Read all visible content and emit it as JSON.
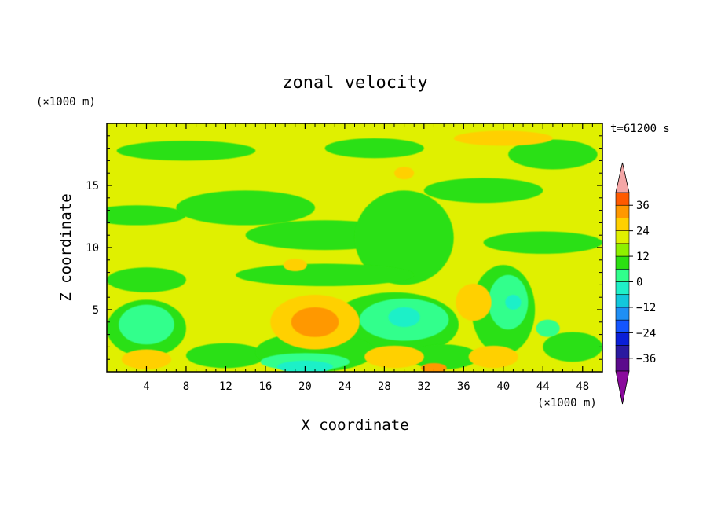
{
  "chart_data": {
    "type": "heatmap",
    "title": "zonal velocity",
    "xlabel": "X coordinate",
    "ylabel": "Z coordinate",
    "x_unit": "(×1000 m)",
    "y_unit": "(×1000 m)",
    "time_label": "t=61200 s",
    "xlim": [
      0,
      50
    ],
    "ylim": [
      0,
      20
    ],
    "x_ticks": [
      4,
      8,
      12,
      16,
      20,
      24,
      28,
      32,
      36,
      40,
      44,
      48
    ],
    "y_ticks": [
      5,
      10,
      15
    ],
    "colorbar": {
      "levels": [
        -42,
        -36,
        -30,
        -24,
        -18,
        -12,
        -6,
        0,
        6,
        12,
        18,
        24,
        30,
        36,
        42
      ],
      "labels": [
        -36,
        -24,
        -12,
        0,
        12,
        24,
        36
      ],
      "colors": [
        "#5b0a8c",
        "#2a1aa0",
        "#0a1fd8",
        "#1455ff",
        "#1f8ff5",
        "#12c7dc",
        "#1ff0c8",
        "#30ff8c",
        "#2be012",
        "#8ef000",
        "#e0f000",
        "#ffd000",
        "#ff9800",
        "#ff5a00",
        "#e81e10"
      ],
      "under_color": "#8a0a9c",
      "over_color": "#f4a6a6"
    },
    "field": {
      "background": 3,
      "regions": [
        {
          "level": 1,
          "x": 3,
          "z": 12.6,
          "rx": 5,
          "rz": 0.8
        },
        {
          "level": 1,
          "x": 14,
          "z": 13.2,
          "rx": 7,
          "rz": 1.4
        },
        {
          "level": 1,
          "x": 22,
          "z": 11,
          "rx": 8,
          "rz": 1.2
        },
        {
          "level": 1,
          "x": 30,
          "z": 10.8,
          "rx": 5,
          "rz": 3.8
        },
        {
          "level": 1,
          "x": 38,
          "z": 14.6,
          "rx": 6,
          "rz": 1.0
        },
        {
          "level": 1,
          "x": 45,
          "z": 17.5,
          "rx": 4.5,
          "rz": 1.2
        },
        {
          "level": 1,
          "x": 8,
          "z": 17.8,
          "rx": 7,
          "rz": 0.8
        },
        {
          "level": 1,
          "x": 27,
          "z": 18,
          "rx": 5,
          "rz": 0.8
        },
        {
          "level": 1,
          "x": 4,
          "z": 7.4,
          "rx": 4,
          "rz": 1.0
        },
        {
          "level": 1,
          "x": 22,
          "z": 7.8,
          "rx": 9,
          "rz": 0.9
        },
        {
          "level": 1,
          "x": 44,
          "z": 10.4,
          "rx": 6,
          "rz": 0.9
        },
        {
          "level": 1,
          "x": 4,
          "z": 3.5,
          "rx": 4,
          "rz": 2.3
        },
        {
          "level": 1,
          "x": 29,
          "z": 3.8,
          "rx": 6.5,
          "rz": 2.6
        },
        {
          "level": 1,
          "x": 40,
          "z": 5,
          "rx": 3.2,
          "rz": 3.6
        },
        {
          "level": 1,
          "x": 12,
          "z": 1.3,
          "rx": 4,
          "rz": 1.0
        },
        {
          "level": 1,
          "x": 21,
          "z": 1.6,
          "rx": 6,
          "rz": 1.6
        },
        {
          "level": 1,
          "x": 34,
          "z": 1.2,
          "rx": 3.5,
          "rz": 1.0
        },
        {
          "level": 1,
          "x": 47,
          "z": 2,
          "rx": 3,
          "rz": 1.2
        },
        {
          "level": 0,
          "x": 4,
          "z": 3.8,
          "rx": 2.8,
          "rz": 1.6
        },
        {
          "level": 0,
          "x": 30,
          "z": 4.2,
          "rx": 4.5,
          "rz": 1.7
        },
        {
          "level": 0,
          "x": 40.5,
          "z": 5.6,
          "rx": 2,
          "rz": 2.2
        },
        {
          "level": 0,
          "x": 20,
          "z": 0.8,
          "rx": 4.5,
          "rz": 0.7
        },
        {
          "level": 0,
          "x": 44.5,
          "z": 3.5,
          "rx": 1.2,
          "rz": 0.7
        },
        {
          "level": -1,
          "x": 30,
          "z": 4.4,
          "rx": 1.6,
          "rz": 0.8
        },
        {
          "level": -1,
          "x": 41,
          "z": 5.6,
          "rx": 0.8,
          "rz": 0.6
        },
        {
          "level": -1,
          "x": 20,
          "z": 0.4,
          "rx": 2.8,
          "rz": 0.5
        },
        {
          "level": 4,
          "x": 21,
          "z": 4,
          "rx": 4.5,
          "rz": 2.2
        },
        {
          "level": 4,
          "x": 37,
          "z": 5.6,
          "rx": 1.8,
          "rz": 1.5
        },
        {
          "level": 4,
          "x": 4,
          "z": 1,
          "rx": 2.5,
          "rz": 0.8
        },
        {
          "level": 4,
          "x": 29,
          "z": 1.2,
          "rx": 3,
          "rz": 0.9
        },
        {
          "level": 4,
          "x": 39,
          "z": 1.2,
          "rx": 2.5,
          "rz": 0.9
        },
        {
          "level": 4,
          "x": 40,
          "z": 18.8,
          "rx": 5,
          "rz": 0.6
        },
        {
          "level": 4,
          "x": 30,
          "z": 16,
          "rx": 1,
          "rz": 0.5
        },
        {
          "level": 4,
          "x": 19,
          "z": 8.6,
          "rx": 1.2,
          "rz": 0.5
        },
        {
          "level": 5,
          "x": 21,
          "z": 4,
          "rx": 2.4,
          "rz": 1.2
        },
        {
          "level": 5,
          "x": 33,
          "z": 0.3,
          "rx": 1.3,
          "rz": 0.4
        }
      ]
    }
  }
}
